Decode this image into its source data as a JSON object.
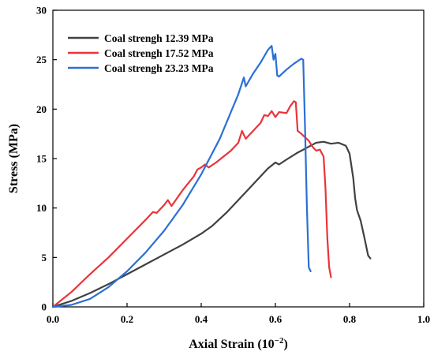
{
  "chart_data": {
    "type": "line",
    "title": "",
    "xlabel": "Axial Strain (10",
    "xlabel_sup": "−2",
    "xlabel_close": ")",
    "ylabel": "Stress (MPa)",
    "xlim": [
      0,
      1.0
    ],
    "ylim": [
      0,
      30
    ],
    "x_ticks": [
      0.0,
      0.2,
      0.4,
      0.6,
      0.8,
      1.0
    ],
    "x_tick_labels": [
      "0.0",
      "0.2",
      "0.4",
      "0.6",
      "0.8",
      "1.0"
    ],
    "y_ticks": [
      0,
      5,
      10,
      15,
      20,
      25,
      30
    ],
    "y_tick_labels": [
      "0",
      "5",
      "10",
      "15",
      "20",
      "25",
      "30"
    ],
    "grid": false,
    "legend_position": "top-left",
    "series": [
      {
        "name": "Coal strengh 12.39 MPa",
        "color": "#404040",
        "points": [
          [
            0.0,
            0.0
          ],
          [
            0.05,
            0.6
          ],
          [
            0.1,
            1.4
          ],
          [
            0.15,
            2.3
          ],
          [
            0.2,
            3.3
          ],
          [
            0.25,
            4.3
          ],
          [
            0.3,
            5.3
          ],
          [
            0.35,
            6.3
          ],
          [
            0.4,
            7.4
          ],
          [
            0.43,
            8.2
          ],
          [
            0.47,
            9.6
          ],
          [
            0.5,
            10.8
          ],
          [
            0.53,
            12.0
          ],
          [
            0.56,
            13.2
          ],
          [
            0.58,
            14.0
          ],
          [
            0.6,
            14.6
          ],
          [
            0.61,
            14.4
          ],
          [
            0.63,
            14.9
          ],
          [
            0.66,
            15.6
          ],
          [
            0.69,
            16.2
          ],
          [
            0.71,
            16.6
          ],
          [
            0.73,
            16.7
          ],
          [
            0.75,
            16.5
          ],
          [
            0.77,
            16.6
          ],
          [
            0.79,
            16.3
          ],
          [
            0.8,
            15.5
          ],
          [
            0.81,
            13.0
          ],
          [
            0.815,
            11.0
          ],
          [
            0.82,
            9.8
          ],
          [
            0.83,
            8.7
          ],
          [
            0.84,
            7.0
          ],
          [
            0.85,
            5.2
          ],
          [
            0.856,
            4.9
          ]
        ]
      },
      {
        "name": "Coal strengh 17.52 MPa",
        "color": "#e8343a",
        "points": [
          [
            0.0,
            0.0
          ],
          [
            0.05,
            1.5
          ],
          [
            0.1,
            3.3
          ],
          [
            0.15,
            5.0
          ],
          [
            0.2,
            6.9
          ],
          [
            0.25,
            8.8
          ],
          [
            0.27,
            9.6
          ],
          [
            0.28,
            9.5
          ],
          [
            0.3,
            10.3
          ],
          [
            0.31,
            10.8
          ],
          [
            0.32,
            10.2
          ],
          [
            0.35,
            11.8
          ],
          [
            0.38,
            13.2
          ],
          [
            0.39,
            13.9
          ],
          [
            0.4,
            14.1
          ],
          [
            0.41,
            14.4
          ],
          [
            0.42,
            14.1
          ],
          [
            0.44,
            14.6
          ],
          [
            0.46,
            15.2
          ],
          [
            0.48,
            15.8
          ],
          [
            0.5,
            16.6
          ],
          [
            0.51,
            17.8
          ],
          [
            0.52,
            17.0
          ],
          [
            0.54,
            17.8
          ],
          [
            0.56,
            18.6
          ],
          [
            0.57,
            19.4
          ],
          [
            0.58,
            19.3
          ],
          [
            0.59,
            19.8
          ],
          [
            0.6,
            19.2
          ],
          [
            0.61,
            19.7
          ],
          [
            0.63,
            19.6
          ],
          [
            0.64,
            20.3
          ],
          [
            0.65,
            20.8
          ],
          [
            0.655,
            20.7
          ],
          [
            0.66,
            17.8
          ],
          [
            0.67,
            17.5
          ],
          [
            0.69,
            16.8
          ],
          [
            0.7,
            16.2
          ],
          [
            0.71,
            15.8
          ],
          [
            0.72,
            15.9
          ],
          [
            0.73,
            15.2
          ],
          [
            0.735,
            12.0
          ],
          [
            0.74,
            7.0
          ],
          [
            0.745,
            4.0
          ],
          [
            0.75,
            3.0
          ]
        ]
      },
      {
        "name": "Coal strengh 23.23 MPa",
        "color": "#2b6fd6",
        "points": [
          [
            0.0,
            0.0
          ],
          [
            0.05,
            0.2
          ],
          [
            0.1,
            0.8
          ],
          [
            0.15,
            2.0
          ],
          [
            0.2,
            3.6
          ],
          [
            0.25,
            5.5
          ],
          [
            0.3,
            7.7
          ],
          [
            0.35,
            10.3
          ],
          [
            0.4,
            13.4
          ],
          [
            0.45,
            17.0
          ],
          [
            0.5,
            21.5
          ],
          [
            0.515,
            23.2
          ],
          [
            0.52,
            22.3
          ],
          [
            0.54,
            23.6
          ],
          [
            0.56,
            24.7
          ],
          [
            0.58,
            26.0
          ],
          [
            0.59,
            26.4
          ],
          [
            0.595,
            25.0
          ],
          [
            0.6,
            25.6
          ],
          [
            0.605,
            23.4
          ],
          [
            0.61,
            23.3
          ],
          [
            0.63,
            24.0
          ],
          [
            0.65,
            24.6
          ],
          [
            0.67,
            25.1
          ],
          [
            0.675,
            25.0
          ],
          [
            0.68,
            18.0
          ],
          [
            0.685,
            10.0
          ],
          [
            0.69,
            4.0
          ],
          [
            0.695,
            3.6
          ]
        ]
      }
    ]
  }
}
